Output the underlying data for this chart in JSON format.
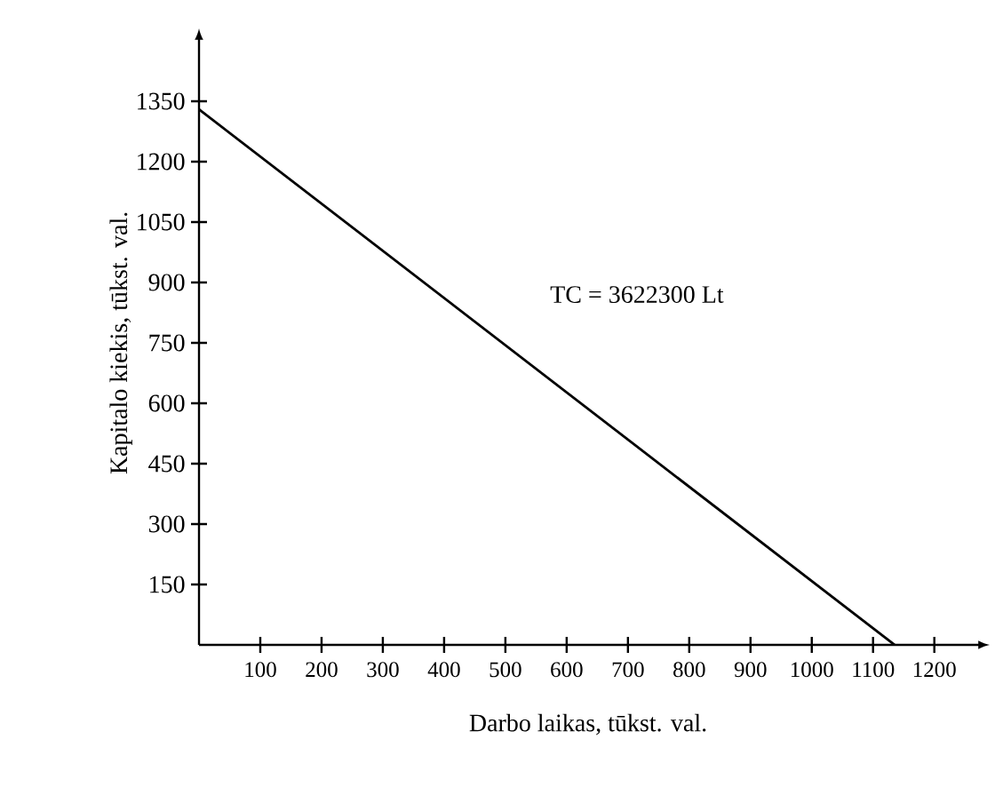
{
  "chart_data": {
    "type": "line",
    "xlabel": "Darbo laikas, tūkst. val.",
    "ylabel": "Kapitalo kiekis, tūkst. val.",
    "x": [
      0,
      1135
    ],
    "series": [
      {
        "color": "#000000",
        "values": [
          1330,
          0
        ]
      }
    ],
    "xlim": [
      0,
      1270
    ],
    "ylim": [
      0,
      1500
    ],
    "xticks": [
      100,
      200,
      300,
      400,
      500,
      600,
      700,
      800,
      900,
      1000,
      1100,
      1200
    ],
    "yticks": [
      150,
      300,
      450,
      600,
      750,
      900,
      1050,
      1200,
      1350
    ],
    "annotations": [
      "TC = 3622300 Lt"
    ],
    "grid": false,
    "marker": "none",
    "line_style": "solid"
  }
}
